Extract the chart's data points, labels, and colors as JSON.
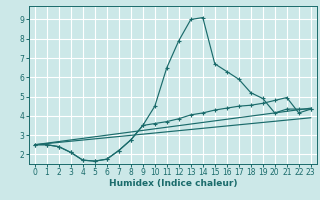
{
  "xlabel": "Humidex (Indice chaleur)",
  "bg_color": "#cce8e8",
  "grid_color": "#ffffff",
  "line_color": "#1a6b6b",
  "ylim": [
    1.5,
    9.7
  ],
  "xlim": [
    -0.5,
    23.5
  ],
  "yticks": [
    2,
    3,
    4,
    5,
    6,
    7,
    8,
    9
  ],
  "xticks": [
    0,
    1,
    2,
    3,
    4,
    5,
    6,
    7,
    8,
    9,
    10,
    11,
    12,
    13,
    14,
    15,
    16,
    17,
    18,
    19,
    20,
    21,
    22,
    23
  ],
  "line1_x": [
    0,
    1,
    2,
    3,
    4,
    5,
    6,
    7,
    8,
    9,
    10,
    11,
    12,
    13,
    14,
    15,
    16,
    17,
    18,
    19,
    20,
    21,
    22,
    23
  ],
  "line1_y": [
    2.5,
    2.5,
    2.4,
    2.1,
    1.7,
    1.65,
    1.75,
    2.2,
    2.75,
    3.5,
    4.5,
    6.5,
    7.9,
    9.0,
    9.1,
    6.7,
    6.3,
    5.9,
    5.2,
    4.9,
    4.15,
    4.35,
    4.35,
    4.35
  ],
  "line2_x": [
    0,
    1,
    2,
    3,
    4,
    5,
    6,
    7,
    8,
    9,
    10,
    11,
    12,
    13,
    14,
    15,
    16,
    17,
    18,
    19,
    20,
    21,
    22,
    23
  ],
  "line2_y": [
    2.5,
    2.5,
    2.4,
    2.1,
    1.7,
    1.65,
    1.75,
    2.2,
    2.75,
    3.5,
    3.6,
    3.7,
    3.85,
    4.05,
    4.15,
    4.3,
    4.4,
    4.5,
    4.55,
    4.65,
    4.8,
    4.95,
    4.15,
    4.35
  ],
  "line3_x": [
    0,
    23
  ],
  "line3_y": [
    2.5,
    4.4
  ],
  "line4_x": [
    0,
    23
  ],
  "line4_y": [
    2.5,
    3.9
  ]
}
